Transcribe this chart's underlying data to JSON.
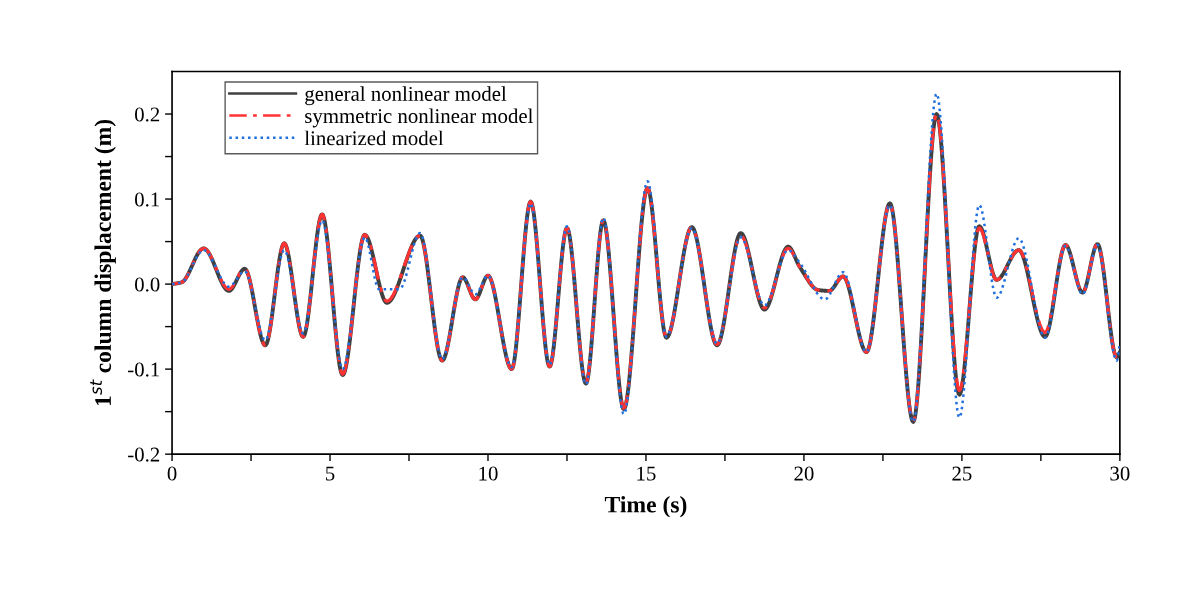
{
  "chart_data": {
    "type": "line",
    "xlabel": "Time (s)",
    "ylabel": "1$^{st}$ column displacement (m)",
    "xlim": [
      0,
      30
    ],
    "ylim": [
      -0.2,
      0.25
    ],
    "xticks": [
      0,
      {
        "value": 2.5,
        "label": null
      },
      5,
      {
        "value": 7.5,
        "label": null
      },
      10,
      {
        "value": 12.5,
        "label": null
      },
      15,
      {
        "value": 17.5,
        "label": null
      },
      20,
      {
        "value": 22.5,
        "label": null
      },
      25,
      {
        "value": 27.5,
        "label": null
      },
      30
    ],
    "yticks": [
      {
        "value": -0.2,
        "label": "-0.2"
      },
      {
        "value": -0.15,
        "label": null
      },
      {
        "value": -0.1,
        "label": "-0.1"
      },
      {
        "value": -0.05,
        "label": null
      },
      {
        "value": 0,
        "label": "0.0"
      },
      {
        "value": 0.05,
        "label": null
      },
      {
        "value": 0.1,
        "label": "0.1"
      },
      {
        "value": 0.15,
        "label": null
      },
      {
        "value": 0.2,
        "label": "0.2"
      }
    ],
    "grid": false,
    "legend": "top left",
    "marker": "none",
    "series": [
      {
        "name": "general nonlinear model",
        "color": "#404040",
        "line_style": "solid",
        "x": [
          0,
          0.3,
          1.0,
          1.8,
          2.3,
          2.95,
          3.55,
          4.15,
          4.75,
          5.4,
          6.1,
          6.8,
          7.85,
          8.55,
          9.2,
          9.6,
          10.0,
          10.75,
          11.35,
          11.95,
          12.5,
          13.1,
          13.65,
          14.3,
          15.05,
          15.65,
          16.45,
          17.25,
          18.0,
          18.75,
          19.5,
          19.87,
          20.45,
          20.8,
          21.24,
          21.98,
          22.72,
          23.46,
          24.2,
          24.92,
          25.55,
          26.1,
          26.8,
          27.63,
          28.28,
          28.82,
          29.29,
          29.9,
          30
        ],
        "values": [
          0,
          0.002,
          0.042,
          -0.008,
          0.018,
          -0.072,
          0.048,
          -0.062,
          0.082,
          -0.107,
          0.058,
          -0.022,
          0.057,
          -0.09,
          0.008,
          -0.018,
          0.01,
          -0.1,
          0.097,
          -0.097,
          0.066,
          -0.117,
          0.075,
          -0.147,
          0.113,
          -0.063,
          0.067,
          -0.072,
          0.06,
          -0.03,
          0.044,
          0.02,
          -0.007,
          -0.008,
          0.009,
          -0.08,
          0.095,
          -0.162,
          0.2,
          -0.13,
          0.068,
          0.005,
          0.04,
          -0.062,
          0.046,
          -0.01,
          0.047,
          -0.086,
          -0.08
        ]
      },
      {
        "name": "symmetric nonlinear model",
        "color": "#ff3333",
        "line_style": "dashdot",
        "x": [
          0,
          0.3,
          1.0,
          1.8,
          2.3,
          2.95,
          3.55,
          4.15,
          4.75,
          5.4,
          6.1,
          6.8,
          7.85,
          8.55,
          9.2,
          9.6,
          10.0,
          10.75,
          11.35,
          11.95,
          12.5,
          13.1,
          13.65,
          14.3,
          15.05,
          15.65,
          16.45,
          17.25,
          18.0,
          18.75,
          19.5,
          19.87,
          20.45,
          20.8,
          21.24,
          21.98,
          22.72,
          23.46,
          24.2,
          24.92,
          25.55,
          26.1,
          26.8,
          27.63,
          28.28,
          28.82,
          29.29,
          29.9,
          30
        ],
        "values": [
          0,
          0.002,
          0.042,
          -0.006,
          0.018,
          -0.072,
          0.048,
          -0.062,
          0.082,
          -0.106,
          0.058,
          -0.02,
          0.057,
          -0.09,
          0.008,
          -0.018,
          0.01,
          -0.1,
          0.097,
          -0.097,
          0.066,
          -0.116,
          0.075,
          -0.146,
          0.113,
          -0.063,
          0.067,
          -0.071,
          0.057,
          -0.028,
          0.042,
          0.02,
          -0.007,
          -0.008,
          0.009,
          -0.08,
          0.095,
          -0.161,
          0.2,
          -0.125,
          0.066,
          0.005,
          0.04,
          -0.057,
          0.046,
          -0.01,
          0.047,
          -0.086,
          -0.08
        ]
      },
      {
        "name": "linearized model",
        "color": "#1f6fdf",
        "line_style": "dotted",
        "x": [
          0,
          0.3,
          1.0,
          1.8,
          2.3,
          2.95,
          3.55,
          4.15,
          4.75,
          5.4,
          6.1,
          6.55,
          7.2,
          7.85,
          8.55,
          9.2,
          9.6,
          10.0,
          10.75,
          11.35,
          11.95,
          12.5,
          13.1,
          13.65,
          14.3,
          15.05,
          15.65,
          16.45,
          17.25,
          18.0,
          18.75,
          19.5,
          19.87,
          20.66,
          21.24,
          21.98,
          22.72,
          23.46,
          24.2,
          24.92,
          25.55,
          26.1,
          26.8,
          27.63,
          28.28,
          28.82,
          29.29,
          29.9,
          30
        ],
        "values": [
          0,
          0.002,
          0.04,
          -0.003,
          0.015,
          -0.066,
          0.04,
          -0.058,
          0.075,
          -0.1,
          0.055,
          -0.006,
          -0.006,
          0.06,
          -0.088,
          0.008,
          -0.012,
          0.01,
          -0.098,
          0.095,
          -0.095,
          0.068,
          -0.118,
          0.078,
          -0.153,
          0.121,
          -0.062,
          0.066,
          -0.07,
          0.055,
          -0.025,
          0.04,
          0.025,
          -0.018,
          0.014,
          -0.08,
          0.093,
          -0.162,
          0.224,
          -0.157,
          0.093,
          -0.016,
          0.054,
          -0.063,
          0.045,
          -0.012,
          0.046,
          -0.09,
          -0.07
        ]
      }
    ]
  }
}
